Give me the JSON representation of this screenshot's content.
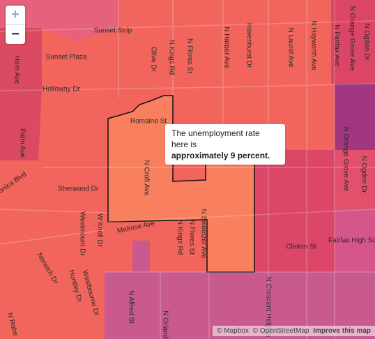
{
  "controls": {
    "zoom_in": "+",
    "zoom_out": "−"
  },
  "labels": [
    "Sunset Strip",
    "Sunset Plaza",
    "Holloway Dr",
    "Horn Ave",
    "Palm Ave",
    "onica Blvd",
    "Sherwood Dr",
    "Romaine St",
    "N Croft Ave",
    "Melrose Ave",
    "Westmount Dr",
    "W Knoll Dr",
    "Norwich Dr",
    "Huntley Dr",
    "Westbourne Dr",
    "N Robe",
    "Olive Dr",
    "N Kings Rd",
    "N Flores St",
    "N Harper Ave",
    "Havenhurst Dr",
    "N Laurel Ave",
    "N Hayworth Ave",
    "N Fairfax Ave",
    "N Orange Grove Ave",
    "N Ogden Dr",
    "N Orange Grove Ave",
    "N Ogden Dr",
    "N Sweetzer Ave",
    "N Kings Rd",
    "N Flores St",
    "Clinton St",
    "Fairfax High Sch",
    "N Crescent Heights",
    "N Alfred St",
    "N Orlando"
  ],
  "tooltip": {
    "line1": "The unemployment rate here is",
    "line2": "approximately 9 percent."
  },
  "attribution": {
    "mapbox": "© Mapbox",
    "osm": "© OpenStreetMap",
    "improve": "Improve this map"
  }
}
